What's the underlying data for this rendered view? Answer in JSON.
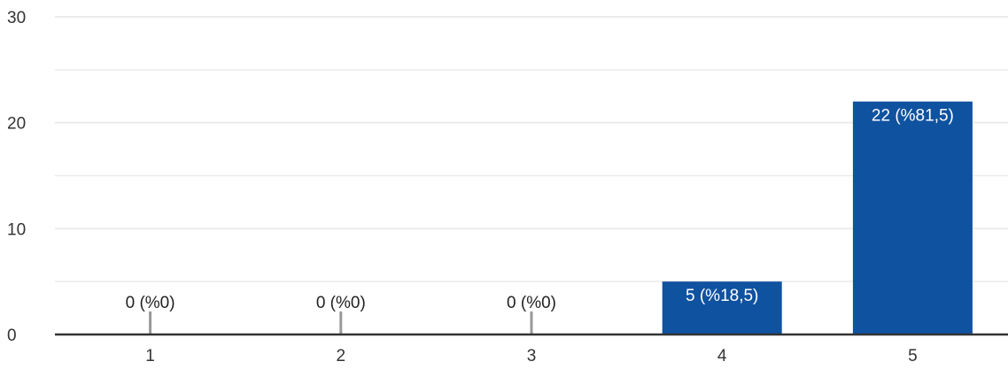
{
  "chart_data": {
    "type": "bar",
    "categories": [
      "1",
      "2",
      "3",
      "4",
      "5"
    ],
    "values": [
      0,
      0,
      0,
      5,
      22
    ],
    "data_labels": [
      "0 (%0)",
      "0 (%0)",
      "0 (%0)",
      "5 (%18,5)",
      "22 (%81,5)"
    ],
    "title": "",
    "xlabel": "",
    "ylabel": "",
    "ylim": [
      0,
      30
    ],
    "yticks": [
      0,
      10,
      20,
      30
    ],
    "yticks_text": [
      "0",
      "10",
      "20",
      "30"
    ],
    "minor_gridlines": [
      5,
      15,
      25
    ],
    "grid": true,
    "legend": "none",
    "colors": {
      "bar": "#0f52a0",
      "zero_marker": "#999999",
      "gridline": "#ebebeb",
      "axis": "#333333",
      "label_inside": "#ffffff",
      "label_outside": "#222222"
    }
  }
}
